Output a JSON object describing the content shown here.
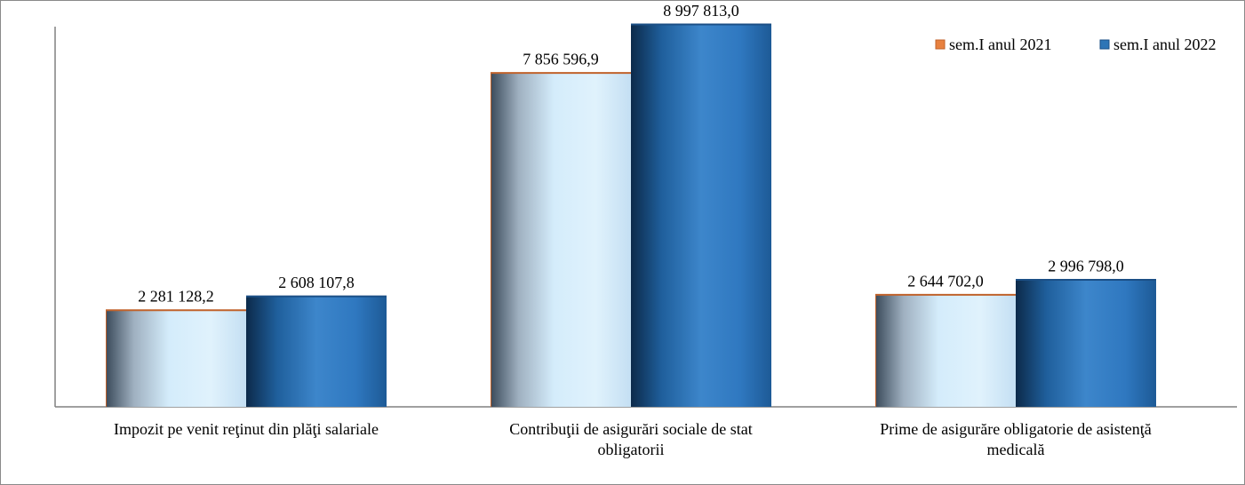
{
  "chart_data": {
    "type": "bar",
    "title": "",
    "xlabel": "",
    "ylabel": "",
    "ylim": [
      0,
      9000000
    ],
    "grid": false,
    "legend_position": "top-right",
    "categories": [
      [
        "Impozit  pe venit reţinut din plăţi salariale"
      ],
      [
        "Contribuţii  de asigurări sociale de stat",
        "obligatorii"
      ],
      [
        "Prime de asigurăre obligatorie de asistenţă",
        "medicală"
      ]
    ],
    "series": [
      {
        "name": "sem.I anul 2021",
        "values": [
          2281128.2,
          7856596.9,
          2644702.0
        ],
        "labels": [
          "2 281 128,2",
          "7 856 596,9",
          "2 644 702,0"
        ]
      },
      {
        "name": "sem.I anul 2022",
        "values": [
          2608107.8,
          8997813.0,
          2996798.0
        ],
        "labels": [
          "2 608 107,8",
          "8 997 813,0",
          "2 996 798,0"
        ]
      }
    ],
    "colors": {
      "series1_edge": "#c0622b",
      "series1_legend": "#e8813f",
      "series2_legend": "#2e75b6"
    }
  }
}
